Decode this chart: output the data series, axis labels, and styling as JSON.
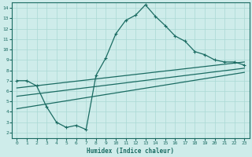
{
  "xlabel": "Humidex (Indice chaleur)",
  "bg_color": "#ceecea",
  "grid_color": "#aad8d4",
  "line_color": "#1a6b62",
  "xlim": [
    -0.5,
    23.5
  ],
  "ylim": [
    1.5,
    14.5
  ],
  "xticks": [
    0,
    1,
    2,
    3,
    4,
    5,
    6,
    7,
    8,
    9,
    10,
    11,
    12,
    13,
    14,
    15,
    16,
    17,
    18,
    19,
    20,
    21,
    22,
    23
  ],
  "yticks": [
    2,
    3,
    4,
    5,
    6,
    7,
    8,
    9,
    10,
    11,
    12,
    13,
    14
  ],
  "curve_x": [
    0,
    1,
    2,
    3,
    4,
    5,
    6,
    7,
    8,
    9,
    10,
    11,
    12,
    13,
    14,
    15,
    16,
    17,
    18,
    19,
    20,
    21,
    22,
    23
  ],
  "curve_y": [
    7.0,
    7.0,
    6.5,
    4.5,
    3.0,
    2.5,
    2.7,
    2.3,
    7.5,
    9.2,
    11.5,
    12.8,
    13.3,
    14.3,
    13.2,
    12.3,
    11.3,
    10.8,
    9.8,
    9.5,
    9.0,
    8.8,
    8.8,
    8.5
  ],
  "line2_x": [
    0,
    23
  ],
  "line2_y": [
    6.3,
    8.8
  ],
  "line3_x": [
    0,
    23
  ],
  "line3_y": [
    5.5,
    8.2
  ],
  "line4_x": [
    0,
    23
  ],
  "line4_y": [
    4.3,
    7.8
  ]
}
